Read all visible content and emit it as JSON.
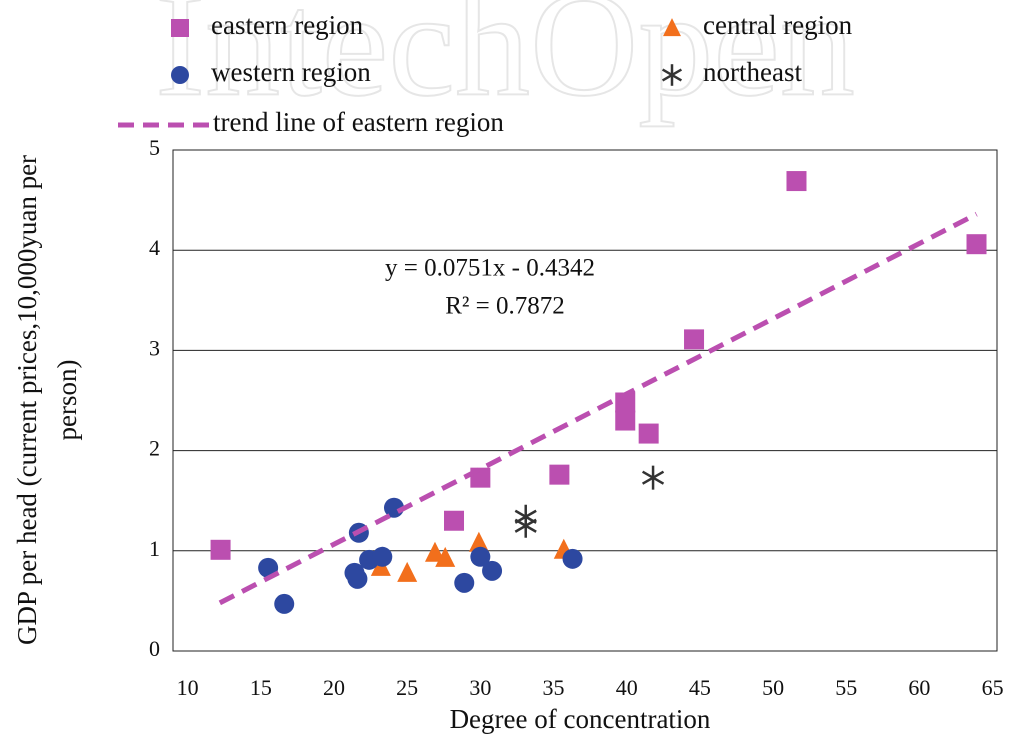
{
  "chart_data": {
    "type": "scatter",
    "watermark": "IntechOpen",
    "xlabel": "Degree of concentration",
    "ylabel": [
      "GDP per head (current prices,10,000yuan per",
      "person)"
    ],
    "annotations": [
      "y = 0.0751x - 0.4342",
      "R² = 0.7872"
    ],
    "xlim": [
      9,
      65.3
    ],
    "ylim": [
      0,
      5
    ],
    "xticks": [
      10,
      15,
      20,
      25,
      30,
      35,
      40,
      45,
      50,
      55,
      60,
      65
    ],
    "yticks": [
      0,
      1,
      2,
      3,
      4,
      5
    ],
    "grid": true,
    "series": [
      {
        "name": "eastern region",
        "color": "#bb4fb0",
        "marker": "square",
        "x": [
          12.25,
          30.0,
          28.2,
          35.4,
          39.9,
          39.9,
          41.5,
          44.6,
          51.6,
          63.9
        ],
        "values": [
          1.01,
          1.73,
          1.3,
          1.76,
          2.48,
          2.3,
          2.17,
          3.11,
          4.69,
          4.06
        ]
      },
      {
        "name": "central region",
        "color": "#f26f1c",
        "marker": "triangle",
        "x": [
          23.2,
          25.0,
          26.9,
          27.6,
          29.9,
          35.7
        ],
        "values": [
          0.84,
          0.78,
          0.98,
          0.93,
          1.08,
          1.01
        ]
      },
      {
        "name": "western region",
        "color": "#2d48a0",
        "marker": "circle",
        "x": [
          15.5,
          16.6,
          21.4,
          21.6,
          21.7,
          22.4,
          23.3,
          24.1,
          28.9,
          30.0,
          30.8,
          36.3
        ],
        "values": [
          0.83,
          0.47,
          0.78,
          0.72,
          1.18,
          0.91,
          0.94,
          1.43,
          0.68,
          0.94,
          0.8,
          0.92
        ]
      },
      {
        "name": "northeast",
        "color": "#333333",
        "marker": "asterisk",
        "x": [
          33.1,
          33.1,
          41.8
        ],
        "values": [
          1.34,
          1.25,
          1.73
        ]
      },
      {
        "name": "trend line of eastern region",
        "color": "#bb4fb0",
        "marker": "dashed-line",
        "x": [
          12.2,
          63.9
        ],
        "values": [
          0.48,
          4.36
        ]
      }
    ]
  }
}
